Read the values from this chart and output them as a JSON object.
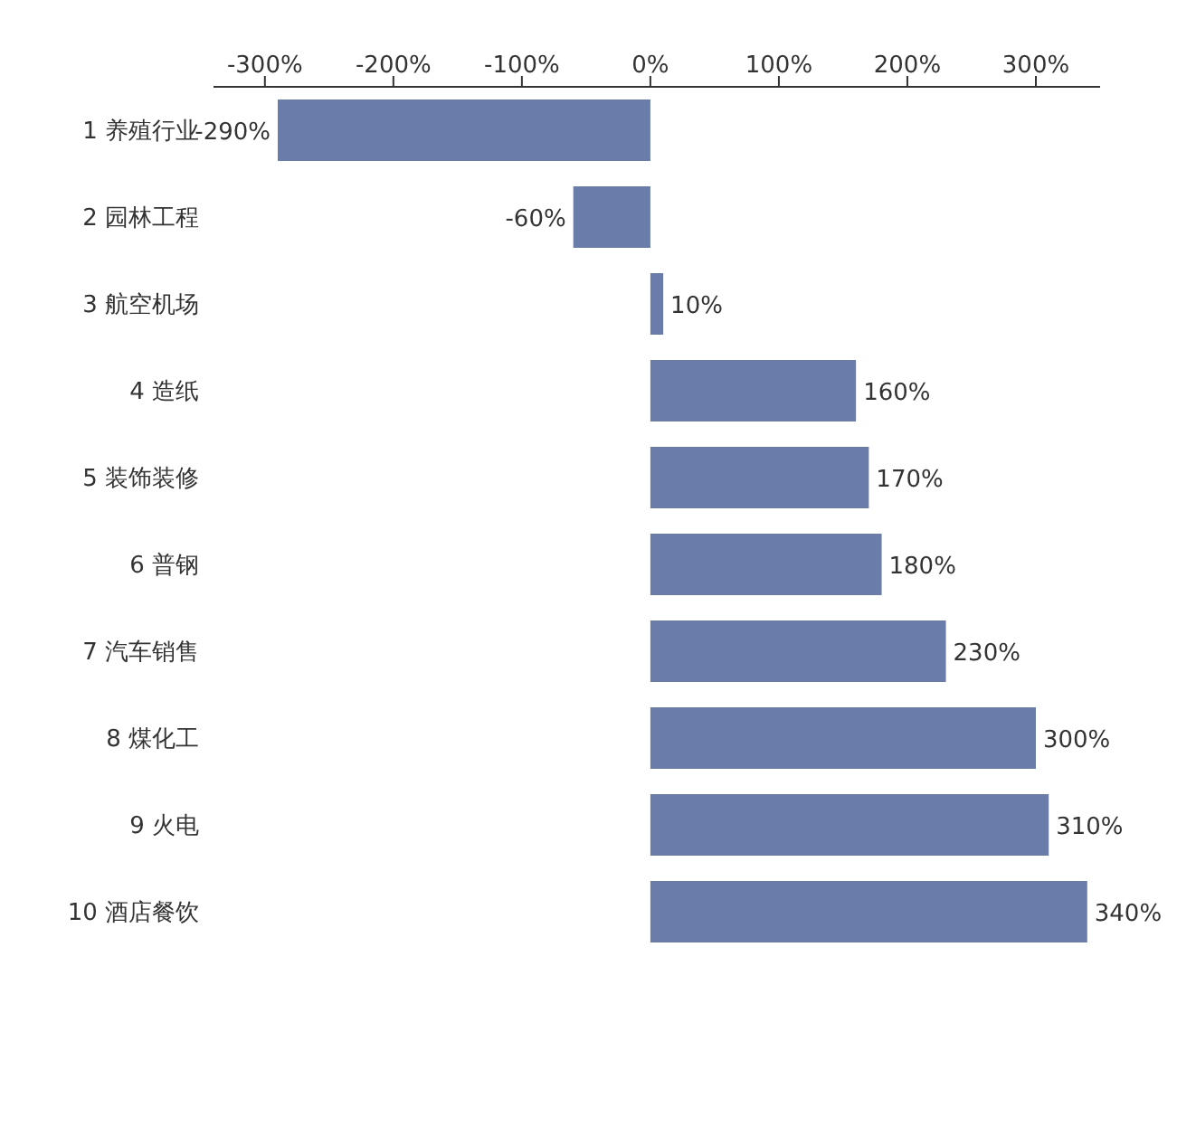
{
  "chart_data": {
    "type": "bar",
    "orientation": "horizontal",
    "categories": [
      "1 养殖行业",
      "2 园林工程",
      "3 航空机场",
      "4 造纸",
      "5 装饰装修",
      "6 普钢",
      "7 汽车销售",
      "8 煤化工",
      "9 火电",
      "10 酒店餐饮"
    ],
    "values": [
      -290,
      -60,
      10,
      160,
      170,
      180,
      230,
      300,
      310,
      340
    ],
    "value_labels": [
      "-290%",
      "-60%",
      "10%",
      "160%",
      "170%",
      "180%",
      "230%",
      "300%",
      "310%",
      "340%"
    ],
    "color": "#6a7daa",
    "xlim": [
      -340,
      350
    ],
    "xticks": [
      {
        "value": -300,
        "label": "-300%"
      },
      {
        "value": -200,
        "label": "-200%"
      },
      {
        "value": -100,
        "label": "-100%"
      },
      {
        "value": 0,
        "label": "0%"
      },
      {
        "value": 100,
        "label": "100%"
      },
      {
        "value": 200,
        "label": "200%"
      },
      {
        "value": 300,
        "label": "300%"
      }
    ],
    "grid": false,
    "legend": false
  }
}
